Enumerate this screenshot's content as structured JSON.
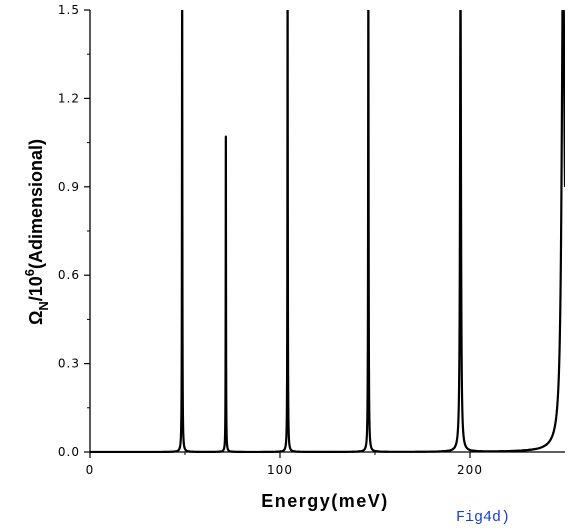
{
  "chart_data": {
    "type": "line",
    "xlabel": "Energy(meV)",
    "ylabel_parts": {
      "omega": "Ω",
      "subscript": "N",
      "ten": "/10",
      "exponent": "6",
      "rest": "(Adimensional)"
    },
    "xlim": [
      0,
      250
    ],
    "ylim": [
      0.0,
      1.5
    ],
    "xticks": [
      {
        "value": 0,
        "label": "0"
      },
      {
        "value": 100,
        "label": "100"
      },
      {
        "value": 200,
        "label": "200"
      }
    ],
    "yticks": [
      {
        "value": 0.0,
        "label": "0.0"
      },
      {
        "value": 0.3,
        "label": "0.3"
      },
      {
        "value": 0.6,
        "label": "0.6"
      },
      {
        "value": 0.9,
        "label": "0.9"
      },
      {
        "value": 1.2,
        "label": "1.2"
      },
      {
        "value": 1.5,
        "label": "1.5"
      }
    ],
    "peaks": [
      {
        "energy": 48.5,
        "height": 1.6,
        "width": 0.12
      },
      {
        "energy": 71.5,
        "height": 1.07,
        "width": 0.1
      },
      {
        "energy": 104.0,
        "height": 1.6,
        "width": 0.12
      },
      {
        "energy": 146.5,
        "height": 1.6,
        "width": 0.15
      },
      {
        "energy": 195.0,
        "height": 1.6,
        "width": 0.3
      },
      {
        "energy": 249.0,
        "height": 1.6,
        "width": 0.9
      },
      {
        "energy": 252.5,
        "height": 1.6,
        "width": 0.9
      }
    ],
    "series_color": "#000000",
    "grid": false
  },
  "figure_label": "Fig4d)"
}
